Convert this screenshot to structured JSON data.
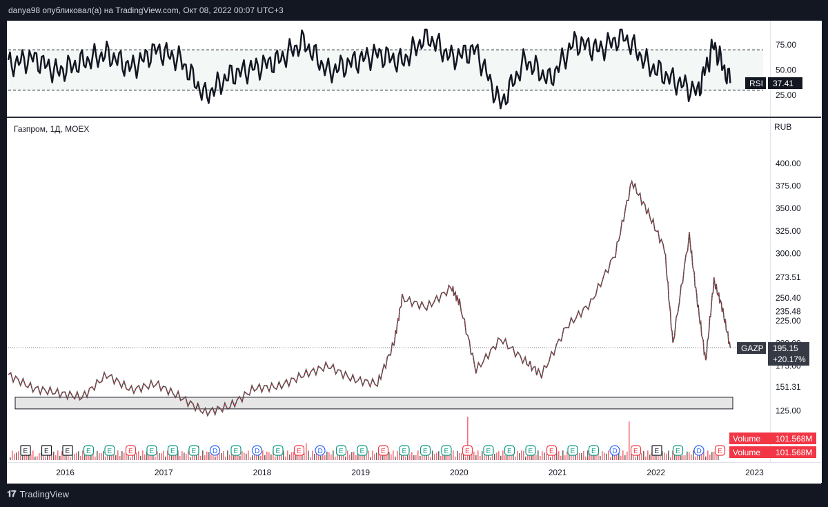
{
  "header": {
    "published": "danya98 опубликовал(а) на TradingView.com, Окт 08, 2022 00:07 UTC+3"
  },
  "footer": {
    "brand": "TradingView"
  },
  "legend": {
    "symbol_line": "Газпром, 1Д, MOEX"
  },
  "colors": {
    "accent": "#f23645",
    "rsi_line": "#131722",
    "label_bg": "#363a45",
    "band_fill": "#e6e6e6"
  },
  "chart_data": [
    {
      "type": "line",
      "title": "",
      "indicator_label": "RSI",
      "current_value": "37.41",
      "y_ticks": [
        "75.00",
        "50.00",
        "25.00"
      ],
      "ylim": [
        10,
        92
      ],
      "levels": [
        70,
        30
      ],
      "x": [
        "2015-06",
        "2015-09",
        "2015-12",
        "2016-03",
        "2016-06",
        "2016-09",
        "2016-12",
        "2017-03",
        "2017-06",
        "2017-09",
        "2017-12",
        "2018-03",
        "2018-06",
        "2018-09",
        "2018-12",
        "2019-03",
        "2019-06",
        "2019-09",
        "2019-12",
        "2020-03",
        "2020-06",
        "2020-09",
        "2020-12",
        "2021-03",
        "2021-06",
        "2021-09",
        "2021-12",
        "2022-03",
        "2022-06",
        "2022-08",
        "2022-10"
      ],
      "values": [
        55,
        62,
        48,
        58,
        66,
        52,
        70,
        60,
        24,
        45,
        52,
        60,
        78,
        48,
        58,
        66,
        58,
        84,
        62,
        70,
        15,
        60,
        40,
        78,
        70,
        84,
        55,
        40,
        28,
        75,
        37
      ]
    },
    {
      "type": "line",
      "title": "",
      "currency": "RUB",
      "symbol_label": "GAZP",
      "last_price": "195.15",
      "change": "+20.17%",
      "y_ticks": [
        "400.00",
        "375.00",
        "350.00",
        "325.00",
        "300.00",
        "273.51",
        "250.40",
        "235.48",
        "225.00",
        "200.00",
        "175.00",
        "151.31",
        "125.00"
      ],
      "ylim": [
        110,
        410
      ],
      "x_ticks": [
        "2016",
        "2017",
        "2018",
        "2019",
        "2020",
        "2021",
        "2022",
        "2023"
      ],
      "xlim": [
        "2015-06",
        "2023-02"
      ],
      "x": [
        "2015-06",
        "2015-09",
        "2015-12",
        "2016-03",
        "2016-06",
        "2016-09",
        "2016-12",
        "2017-03",
        "2017-06",
        "2017-09",
        "2017-12",
        "2018-03",
        "2018-06",
        "2018-09",
        "2018-12",
        "2019-03",
        "2019-05",
        "2019-06",
        "2019-09",
        "2019-12",
        "2020-01",
        "2020-03",
        "2020-06",
        "2020-09",
        "2020-11",
        "2021-02",
        "2021-05",
        "2021-08",
        "2021-10",
        "2021-12",
        "2022-02",
        "2022-03",
        "2022-05",
        "2022-06",
        "2022-07",
        "2022-08",
        "2022-09",
        "2022-10"
      ],
      "values": [
        165,
        150,
        145,
        140,
        165,
        148,
        155,
        140,
        123,
        130,
        150,
        152,
        165,
        175,
        160,
        155,
        200,
        250,
        240,
        262,
        245,
        170,
        205,
        180,
        165,
        218,
        245,
        300,
        380,
        345,
        305,
        200,
        320,
        245,
        180,
        270,
        240,
        195
      ],
      "support_zone": [
        127,
        140
      ]
    },
    {
      "type": "bar",
      "title": "",
      "label": "Volume",
      "value_text": "101.568M",
      "spikes": [
        0.08,
        0.1,
        0.12,
        0.3,
        0.1,
        0.35,
        0.15,
        0.1,
        0.9,
        0.2,
        0.1,
        0.8,
        0.1,
        0.12
      ]
    }
  ],
  "events": [
    "E",
    "E",
    "E",
    "E",
    "E",
    "E",
    "E",
    "E",
    "E",
    "D",
    "E",
    "D",
    "E",
    "E",
    "D",
    "E",
    "E",
    "E",
    "E",
    "E",
    "E",
    "E",
    "E",
    "E",
    "E",
    "E",
    "E",
    "E",
    "D",
    "E",
    "E",
    "E",
    "D",
    "E"
  ]
}
